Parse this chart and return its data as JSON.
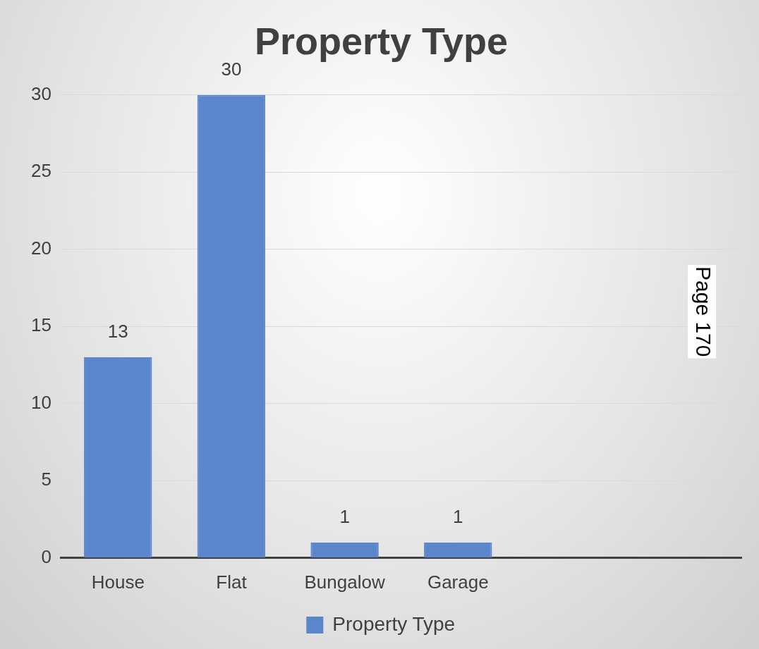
{
  "chart_data": {
    "type": "bar",
    "title": "Property Type",
    "categories": [
      "House",
      "Flat",
      "Bungalow",
      "Garage",
      null,
      null
    ],
    "series": [
      {
        "name": "Property Type",
        "color": "#5b86cc",
        "values": [
          13,
          30,
          1,
          1,
          null,
          null
        ]
      }
    ],
    "ylim": [
      0,
      30
    ],
    "yticks": [
      0,
      5,
      10,
      15,
      20,
      25,
      30
    ],
    "grid": "y",
    "legend": "bottom",
    "data_labels": true,
    "annotations": [
      "Page 170"
    ]
  }
}
